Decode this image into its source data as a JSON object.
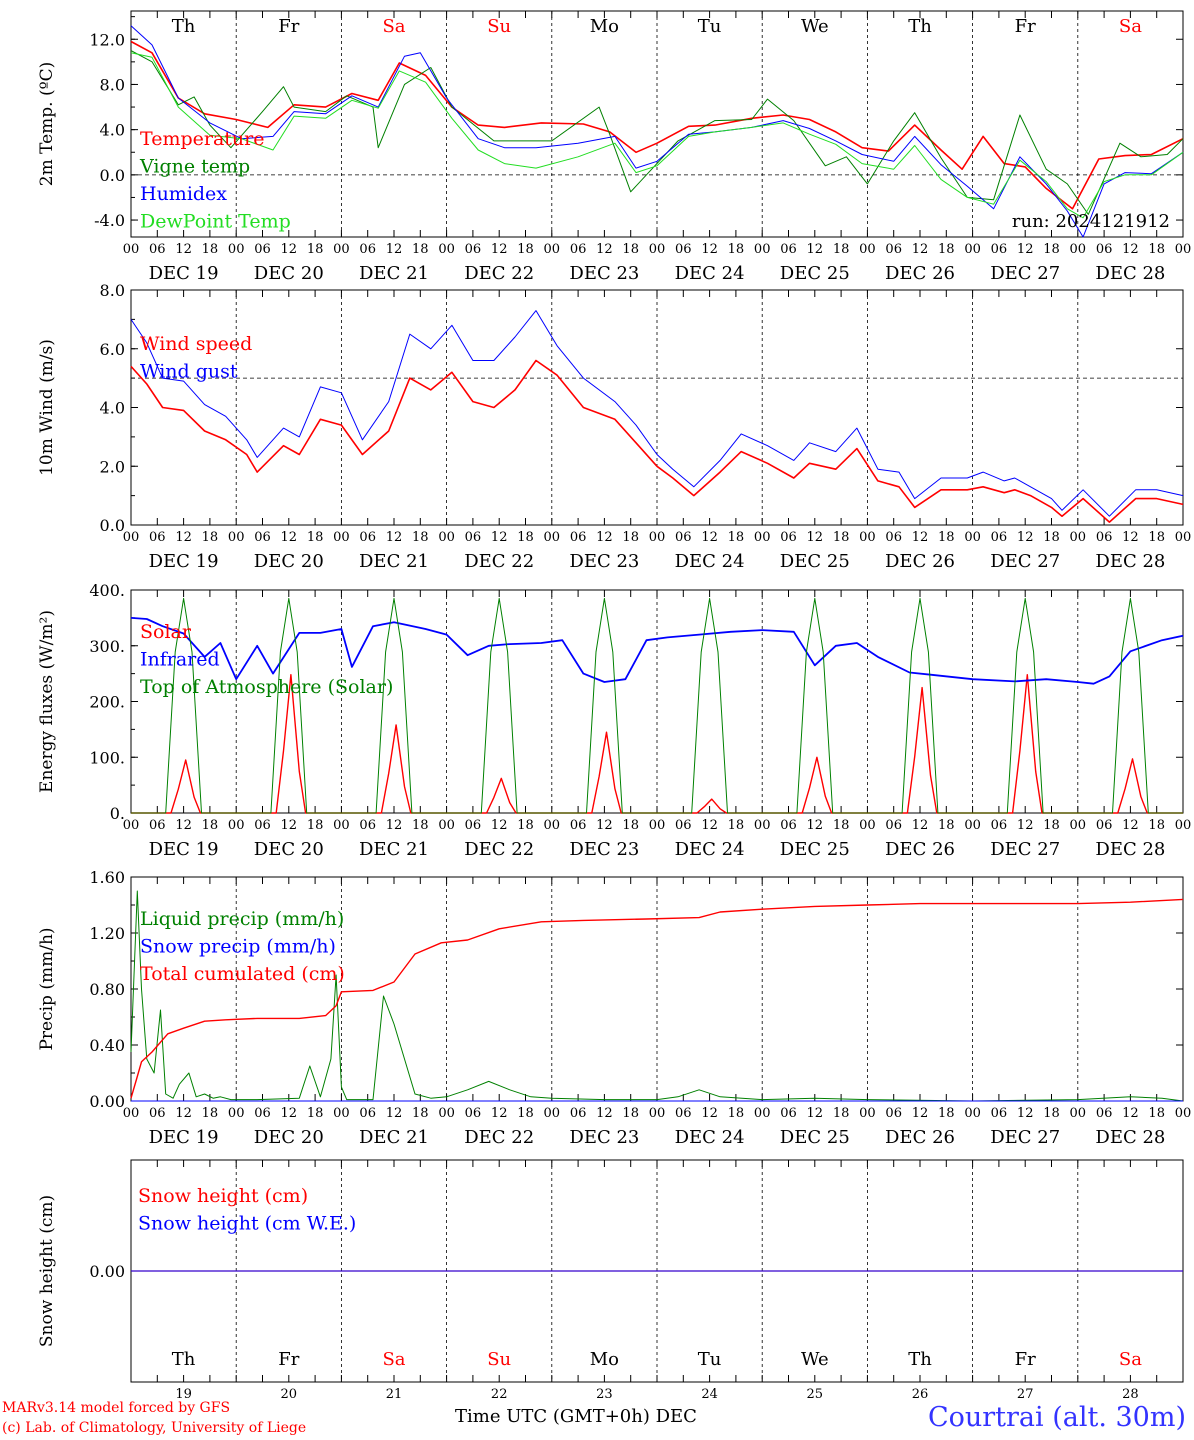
{
  "run_label": "run: 2024121912",
  "weekdays": [
    "Th",
    "Fr",
    "Sa",
    "Su",
    "Mo",
    "Tu",
    "We",
    "Th",
    "Fr",
    "Sa"
  ],
  "weekend_flags": [
    false,
    false,
    true,
    true,
    false,
    false,
    false,
    false,
    false,
    true
  ],
  "day_numbers": [
    "19",
    "20",
    "21",
    "22",
    "23",
    "24",
    "25",
    "26",
    "27",
    "28"
  ],
  "dates": [
    "DEC 19",
    "DEC 20",
    "DEC 21",
    "DEC 22",
    "DEC 23",
    "DEC 24",
    "DEC 25",
    "DEC 26",
    "DEC 27",
    "DEC 28"
  ],
  "hour_ticks": [
    "00",
    "06",
    "12",
    "18"
  ],
  "colors": {
    "red": "#ff0000",
    "green": "#008000",
    "blue": "#0000ff",
    "lime": "#22dd22",
    "weekend": "#ff0000",
    "footer_right": "#3333ff"
  },
  "footer": {
    "model": "MARv3.14 model forced by GFS",
    "lab": "(c) Lab. of Climatology, University of Liege",
    "time_label": "Time UTC (GMT+0h) DEC",
    "station": "Courtrai (alt. 30m)"
  },
  "chart_data": [
    {
      "id": "temp",
      "type": "line",
      "ylabel": "2m Temp. (ºC)",
      "ylim": [
        -5.5,
        14.5
      ],
      "yticks": [
        -4.0,
        0.0,
        4.0,
        8.0,
        12.0
      ],
      "ytick_labels": [
        "-4.0",
        "0.0",
        "4.0",
        "8.0",
        "12.0"
      ],
      "xlim_days": [
        0,
        10
      ],
      "ref_line": 0.0,
      "legend": [
        "Temperature",
        "Vigne temp",
        "Humidex",
        "DewPoint Temp"
      ],
      "series": [
        {
          "name": "Temperature",
          "color": "red",
          "width": 1.6,
          "x": [
            0,
            0.2,
            0.45,
            0.7,
            1.0,
            1.3,
            1.55,
            1.85,
            2.1,
            2.35,
            2.55,
            2.8,
            3.05,
            3.3,
            3.55,
            3.9,
            4.3,
            4.55,
            4.8,
            5.0,
            5.3,
            5.55,
            5.9,
            6.2,
            6.45,
            6.7,
            6.95,
            7.2,
            7.45,
            7.7,
            7.9,
            8.1,
            8.3,
            8.5,
            8.7,
            8.95,
            9.2,
            9.45,
            9.7,
            10.0
          ],
          "y": [
            11.8,
            10.8,
            6.8,
            5.4,
            4.9,
            4.2,
            6.2,
            6.0,
            7.2,
            6.6,
            9.9,
            8.8,
            6.0,
            4.4,
            4.2,
            4.6,
            4.5,
            3.8,
            2.0,
            2.8,
            4.3,
            4.4,
            5.0,
            5.3,
            4.9,
            3.8,
            2.4,
            2.1,
            4.4,
            2.2,
            0.5,
            3.4,
            1.0,
            0.7,
            -1.2,
            -3.0,
            1.4,
            1.7,
            1.8,
            3.2
          ]
        },
        {
          "name": "Vigne temp",
          "color": "green",
          "width": 1.0,
          "x": [
            0,
            0.2,
            0.45,
            0.6,
            0.75,
            0.95,
            1.25,
            1.45,
            1.55,
            1.85,
            2.05,
            2.3,
            2.35,
            2.6,
            2.85,
            3.05,
            3.45,
            4.0,
            4.45,
            4.55,
            4.75,
            4.95,
            5.2,
            5.55,
            5.9,
            6.05,
            6.3,
            6.6,
            6.8,
            7.0,
            7.25,
            7.45,
            7.7,
            7.95,
            8.2,
            8.45,
            8.7,
            8.9,
            9.1,
            9.4,
            9.6,
            9.85,
            10.0
          ],
          "y": [
            11.0,
            10.0,
            6.2,
            6.9,
            4.4,
            2.4,
            5.6,
            7.8,
            6.0,
            5.6,
            7.0,
            6.0,
            2.4,
            8.0,
            9.5,
            6.0,
            3.0,
            3.0,
            6.0,
            3.6,
            -1.5,
            0.5,
            3.0,
            4.8,
            4.9,
            6.7,
            4.8,
            0.8,
            1.6,
            -0.8,
            3.0,
            5.5,
            1.5,
            -2.0,
            -2.2,
            5.3,
            0.5,
            -0.8,
            -3.5,
            2.8,
            1.6,
            1.8,
            3.2
          ]
        },
        {
          "name": "Humidex",
          "color": "blue",
          "width": 1.0,
          "x": [
            0,
            0.2,
            0.45,
            0.75,
            1.05,
            1.35,
            1.55,
            1.85,
            2.1,
            2.35,
            2.6,
            2.75,
            3.0,
            3.3,
            3.55,
            3.85,
            4.25,
            4.6,
            4.8,
            5.0,
            5.3,
            5.55,
            5.9,
            6.2,
            6.45,
            6.7,
            6.95,
            7.25,
            7.45,
            7.7,
            7.95,
            8.2,
            8.45,
            8.7,
            8.9,
            9.05,
            9.25,
            9.45,
            9.7,
            10.0
          ],
          "y": [
            13.2,
            11.5,
            6.8,
            4.6,
            3.2,
            3.4,
            5.6,
            5.4,
            7.0,
            6.0,
            10.5,
            10.8,
            6.8,
            3.2,
            2.4,
            2.4,
            2.8,
            3.4,
            0.6,
            1.2,
            3.6,
            3.8,
            4.2,
            4.8,
            4.1,
            3.0,
            1.8,
            1.2,
            3.4,
            0.9,
            -1.0,
            -3.0,
            1.6,
            -0.8,
            -3.2,
            -5.5,
            -0.8,
            0.2,
            0.1,
            2.0
          ]
        },
        {
          "name": "DewPoint Temp",
          "color": "lime",
          "width": 1.0,
          "x": [
            0,
            0.2,
            0.45,
            0.75,
            1.05,
            1.35,
            1.55,
            1.85,
            2.1,
            2.35,
            2.55,
            2.8,
            3.05,
            3.3,
            3.55,
            3.85,
            4.25,
            4.6,
            4.8,
            5.0,
            5.3,
            5.55,
            5.9,
            6.2,
            6.45,
            6.7,
            6.95,
            7.25,
            7.45,
            7.7,
            7.95,
            8.2,
            8.45,
            8.7,
            8.9,
            9.05,
            9.25,
            9.45,
            9.7,
            10.0
          ],
          "y": [
            10.8,
            10.4,
            6.0,
            3.5,
            3.2,
            2.2,
            5.2,
            5.0,
            6.6,
            5.9,
            9.2,
            8.2,
            5.0,
            2.2,
            1.0,
            0.6,
            1.6,
            2.8,
            0.2,
            0.8,
            3.4,
            3.8,
            4.2,
            4.6,
            3.6,
            2.7,
            1.0,
            0.5,
            2.6,
            -0.4,
            -2.0,
            -2.6,
            1.3,
            -0.6,
            -3.0,
            -3.8,
            -0.6,
            0.0,
            0.0,
            2.0
          ]
        }
      ]
    },
    {
      "id": "wind",
      "type": "line",
      "ylabel": "10m Wind (m/s)",
      "ylim": [
        0.0,
        8.0
      ],
      "yticks": [
        0.0,
        2.0,
        4.0,
        6.0,
        8.0
      ],
      "ytick_labels": [
        "0.0",
        "2.0",
        "4.0",
        "6.0",
        "8.0"
      ],
      "xlim_days": [
        0,
        10
      ],
      "ref_line": 5.0,
      "legend": [
        "Wind speed",
        "Wind gust"
      ],
      "series": [
        {
          "name": "Wind speed",
          "color": "red",
          "width": 1.6,
          "x": [
            0,
            0.15,
            0.3,
            0.5,
            0.7,
            0.9,
            1.1,
            1.2,
            1.45,
            1.6,
            1.8,
            2.0,
            2.2,
            2.45,
            2.65,
            2.85,
            3.05,
            3.25,
            3.45,
            3.65,
            3.85,
            4.05,
            4.3,
            4.6,
            4.8,
            5.0,
            5.15,
            5.35,
            5.6,
            5.8,
            6.05,
            6.3,
            6.45,
            6.7,
            6.9,
            7.1,
            7.3,
            7.45,
            7.7,
            7.95,
            8.1,
            8.3,
            8.4,
            8.55,
            8.75,
            8.85,
            9.05,
            9.3,
            9.55,
            9.75,
            10.0
          ],
          "y": [
            5.4,
            4.8,
            4.0,
            3.9,
            3.2,
            2.9,
            2.4,
            1.8,
            2.7,
            2.4,
            3.6,
            3.4,
            2.4,
            3.2,
            5.0,
            4.6,
            5.2,
            4.2,
            4.0,
            4.6,
            5.6,
            5.1,
            4.0,
            3.6,
            2.8,
            2.0,
            1.6,
            1.0,
            1.8,
            2.5,
            2.1,
            1.6,
            2.1,
            1.9,
            2.6,
            1.5,
            1.3,
            0.6,
            1.2,
            1.2,
            1.3,
            1.1,
            1.2,
            1.0,
            0.6,
            0.3,
            0.9,
            0.1,
            0.9,
            0.9,
            0.7
          ]
        },
        {
          "name": "Wind gust",
          "color": "blue",
          "width": 1.0,
          "x": [
            0,
            0.15,
            0.3,
            0.5,
            0.7,
            0.9,
            1.1,
            1.2,
            1.45,
            1.6,
            1.8,
            2.0,
            2.2,
            2.45,
            2.65,
            2.85,
            3.05,
            3.25,
            3.45,
            3.65,
            3.85,
            4.05,
            4.3,
            4.6,
            4.8,
            5.0,
            5.15,
            5.35,
            5.6,
            5.8,
            6.05,
            6.3,
            6.45,
            6.7,
            6.9,
            7.1,
            7.3,
            7.45,
            7.7,
            7.95,
            8.1,
            8.3,
            8.4,
            8.55,
            8.75,
            8.85,
            9.05,
            9.3,
            9.55,
            9.75,
            10.0
          ],
          "y": [
            7.0,
            6.2,
            5.0,
            4.9,
            4.1,
            3.7,
            2.9,
            2.3,
            3.3,
            3.0,
            4.7,
            4.5,
            2.9,
            4.2,
            6.5,
            6.0,
            6.8,
            5.6,
            5.6,
            6.4,
            7.3,
            6.1,
            5.0,
            4.2,
            3.4,
            2.4,
            1.9,
            1.3,
            2.2,
            3.1,
            2.7,
            2.2,
            2.8,
            2.5,
            3.3,
            1.9,
            1.8,
            0.9,
            1.6,
            1.6,
            1.8,
            1.5,
            1.6,
            1.3,
            0.9,
            0.5,
            1.2,
            0.3,
            1.2,
            1.2,
            1.0
          ]
        }
      ]
    },
    {
      "id": "flux",
      "type": "line",
      "ylabel": "Energy fluxes (W/m²)",
      "ylim": [
        0,
        400
      ],
      "yticks": [
        0,
        100,
        200,
        300,
        400
      ],
      "ytick_labels": [
        "0.",
        "100.",
        "200.",
        "300.",
        "400."
      ],
      "xlim_days": [
        0,
        10
      ],
      "legend": [
        "Solar",
        "Infrared",
        "Top of Atmosphere (Solar)"
      ],
      "series": [
        {
          "name": "Solar",
          "color": "red",
          "width": 1.4,
          "solar_peaks": [
            95,
            248,
            158,
            62,
            145,
            25,
            100,
            225,
            248,
            97
          ]
        },
        {
          "name": "Infrared",
          "color": "blue",
          "width": 1.8,
          "x": [
            0,
            0.15,
            0.3,
            0.5,
            0.7,
            0.85,
            1.0,
            1.2,
            1.35,
            1.6,
            1.8,
            2.0,
            2.1,
            2.3,
            2.5,
            2.8,
            3.0,
            3.2,
            3.4,
            3.6,
            3.9,
            4.1,
            4.3,
            4.5,
            4.7,
            4.9,
            5.1,
            5.4,
            5.7,
            6.0,
            6.3,
            6.5,
            6.7,
            6.9,
            7.1,
            7.4,
            7.6,
            8.0,
            8.4,
            8.7,
            9.0,
            9.15,
            9.3,
            9.5,
            9.8,
            10.0
          ],
          "y": [
            350,
            348,
            335,
            322,
            280,
            305,
            240,
            300,
            250,
            323,
            323,
            330,
            262,
            335,
            342,
            330,
            320,
            283,
            300,
            303,
            305,
            310,
            250,
            235,
            240,
            310,
            315,
            320,
            325,
            328,
            325,
            265,
            300,
            305,
            280,
            252,
            248,
            240,
            236,
            240,
            235,
            232,
            245,
            290,
            310,
            318
          ]
        },
        {
          "name": "Top of Atmosphere (Solar)",
          "color": "green",
          "width": 1.0,
          "toa_peaks": [
            385,
            385,
            385,
            385,
            385,
            385,
            385,
            385,
            385,
            385
          ]
        }
      ]
    },
    {
      "id": "precip",
      "type": "line",
      "ylabel": "Precip (mm/h)",
      "ylim": [
        0,
        1.6
      ],
      "yticks": [
        0.0,
        0.4,
        0.8,
        1.2,
        1.6
      ],
      "ytick_labels": [
        "0.00",
        "0.40",
        "0.80",
        "1.20",
        "1.60"
      ],
      "xlim_days": [
        0,
        10
      ],
      "legend": [
        "Liquid precip (mm/h)",
        "Snow precip (mm/h)",
        "Total cumulated (cm)"
      ],
      "series": [
        {
          "name": "Liquid precip (mm/h)",
          "color": "green",
          "width": 1.0,
          "x": [
            0,
            0.06,
            0.1,
            0.15,
            0.22,
            0.28,
            0.33,
            0.4,
            0.46,
            0.55,
            0.62,
            0.7,
            0.78,
            0.85,
            0.95,
            1.2,
            1.6,
            1.7,
            1.8,
            1.9,
            1.95,
            2.0,
            2.05,
            2.15,
            2.3,
            2.4,
            2.5,
            2.6,
            2.7,
            2.85,
            3.0,
            3.2,
            3.4,
            3.6,
            3.8,
            4.0,
            4.5,
            5.0,
            5.2,
            5.4,
            5.6,
            6.0,
            6.5,
            7.0,
            8.0,
            9.0,
            9.5,
            9.8,
            10.0
          ],
          "y": [
            0.35,
            1.5,
            0.8,
            0.3,
            0.2,
            0.65,
            0.05,
            0.02,
            0.12,
            0.2,
            0.03,
            0.05,
            0.02,
            0.03,
            0.01,
            0.01,
            0.02,
            0.25,
            0.03,
            0.3,
            0.9,
            0.1,
            0.01,
            0.01,
            0.01,
            0.75,
            0.55,
            0.3,
            0.05,
            0.02,
            0.03,
            0.08,
            0.14,
            0.08,
            0.03,
            0.02,
            0.01,
            0.01,
            0.03,
            0.08,
            0.03,
            0.01,
            0.02,
            0.01,
            0.0,
            0.01,
            0.03,
            0.02,
            0.0
          ]
        },
        {
          "name": "Snow precip (mm/h)",
          "color": "blue",
          "width": 1.0,
          "x": [
            0,
            10
          ],
          "y": [
            0,
            0
          ]
        },
        {
          "name": "Total cumulated (cm)",
          "color": "red",
          "width": 1.4,
          "x": [
            0,
            0.05,
            0.1,
            0.2,
            0.35,
            0.5,
            0.7,
            0.9,
            1.2,
            1.6,
            1.85,
            1.95,
            2.0,
            2.3,
            2.5,
            2.7,
            2.95,
            3.2,
            3.5,
            3.9,
            4.3,
            4.9,
            5.4,
            5.6,
            6.0,
            6.5,
            7.0,
            7.5,
            8.0,
            9.0,
            9.5,
            10.0
          ],
          "y": [
            0.02,
            0.15,
            0.28,
            0.35,
            0.48,
            0.52,
            0.57,
            0.58,
            0.59,
            0.59,
            0.61,
            0.68,
            0.78,
            0.79,
            0.85,
            1.05,
            1.13,
            1.15,
            1.23,
            1.28,
            1.29,
            1.3,
            1.31,
            1.35,
            1.37,
            1.39,
            1.4,
            1.41,
            1.41,
            1.41,
            1.42,
            1.44
          ]
        }
      ]
    },
    {
      "id": "snow",
      "type": "line",
      "ylabel": "Snow height (cm)",
      "ylim": [
        -1,
        1
      ],
      "yticks": [
        0
      ],
      "ytick_labels": [
        "0.00"
      ],
      "xlim_days": [
        0,
        10
      ],
      "legend": [
        "Snow height (cm)",
        "Snow height (cm W.E.)"
      ],
      "series": [
        {
          "name": "Snow height (cm)",
          "color": "red",
          "width": 1.2,
          "x": [
            0,
            10
          ],
          "y": [
            0,
            0
          ]
        },
        {
          "name": "Snow height (cm W.E.)",
          "color": "blue",
          "width": 1.0,
          "x": [
            0,
            10
          ],
          "y": [
            0,
            0
          ]
        }
      ]
    }
  ]
}
